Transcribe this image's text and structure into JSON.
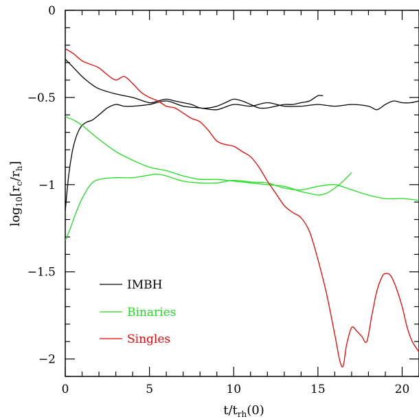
{
  "chart_data": {
    "type": "line",
    "title": "",
    "xlabel": "t/t_rh(0)",
    "ylabel": "log10[r_c/r_h]",
    "xlim": [
      0,
      21
    ],
    "ylim": [
      -2.1,
      0
    ],
    "x_ticks": [
      0,
      5,
      10,
      15,
      20
    ],
    "y_ticks": [
      0,
      -0.5,
      -1,
      -1.5,
      -2
    ],
    "x_tick_labels": [
      "0",
      "5",
      "10",
      "15",
      "20"
    ],
    "y_tick_labels": [
      "0",
      "-0.5",
      "-1",
      "-1.5",
      "-2"
    ],
    "grid": false,
    "legend_position": "bottom-left",
    "legend": [
      {
        "name": "IMBH",
        "color": "#000000"
      },
      {
        "name": "Binaries",
        "color": "#22dd22"
      },
      {
        "name": "Singles",
        "color": "#ee0000"
      }
    ],
    "series": [
      {
        "name": "IMBH",
        "color": "#000000",
        "x": [
          0,
          0.5,
          1,
          1.5,
          2,
          3,
          4,
          5,
          5.5,
          6,
          6.5,
          7,
          7.5,
          8,
          8.5,
          9,
          9.5,
          10,
          10.5,
          11,
          11.5,
          12,
          12.5,
          13,
          13.5,
          14,
          14.5,
          15,
          15.3
        ],
        "y": [
          -0.28,
          -0.33,
          -0.38,
          -0.42,
          -0.45,
          -0.48,
          -0.5,
          -0.53,
          -0.52,
          -0.51,
          -0.52,
          -0.53,
          -0.54,
          -0.56,
          -0.56,
          -0.55,
          -0.53,
          -0.51,
          -0.52,
          -0.54,
          -0.56,
          -0.56,
          -0.55,
          -0.54,
          -0.54,
          -0.53,
          -0.52,
          -0.49,
          -0.49
        ]
      },
      {
        "name": "IMBH",
        "color": "#000000",
        "x": [
          0,
          0.2,
          0.4,
          0.6,
          0.8,
          1,
          1.3,
          1.6,
          2,
          2.5,
          3,
          3.5,
          4,
          5,
          6,
          7,
          8,
          9,
          10,
          11,
          12,
          13,
          14,
          15,
          16,
          17,
          18,
          18.5,
          19,
          19.5,
          20,
          20.5,
          21
        ],
        "y": [
          -1.15,
          -0.95,
          -0.82,
          -0.74,
          -0.69,
          -0.66,
          -0.64,
          -0.63,
          -0.6,
          -0.56,
          -0.54,
          -0.55,
          -0.55,
          -0.54,
          -0.52,
          -0.55,
          -0.56,
          -0.57,
          -0.54,
          -0.55,
          -0.53,
          -0.55,
          -0.55,
          -0.54,
          -0.55,
          -0.54,
          -0.55,
          -0.57,
          -0.54,
          -0.52,
          -0.53,
          -0.53,
          -0.52
        ]
      },
      {
        "name": "Binaries",
        "color": "#22dd22",
        "x": [
          0,
          0.5,
          1,
          1.5,
          2,
          3,
          4,
          5,
          6,
          7,
          8,
          9,
          10,
          11,
          12,
          13,
          14,
          14.5,
          15,
          15.5,
          16,
          16.5,
          17
        ],
        "y": [
          -0.61,
          -0.63,
          -0.66,
          -0.7,
          -0.74,
          -0.81,
          -0.86,
          -0.9,
          -0.92,
          -0.95,
          -0.97,
          -0.97,
          -0.98,
          -0.99,
          -1.0,
          -1.01,
          -1.04,
          -1.05,
          -1.06,
          -1.05,
          -1.02,
          -0.98,
          -0.93
        ]
      },
      {
        "name": "Binaries",
        "color": "#22dd22",
        "x": [
          0,
          0.3,
          0.6,
          1,
          1.5,
          2,
          3,
          4,
          5,
          5.5,
          6,
          7,
          8,
          9,
          10,
          11,
          12,
          13,
          14,
          15,
          16,
          17,
          18,
          19,
          20,
          21
        ],
        "y": [
          -1.32,
          -1.25,
          -1.17,
          -1.08,
          -1.0,
          -0.97,
          -0.96,
          -0.96,
          -0.945,
          -0.94,
          -0.95,
          -0.98,
          -0.99,
          -0.99,
          -0.975,
          -0.985,
          -0.99,
          -1.02,
          -1.03,
          -1.01,
          -1.0,
          -1.03,
          -1.06,
          -1.08,
          -1.08,
          -1.09
        ]
      },
      {
        "name": "Singles",
        "color": "#ee0000",
        "x": [
          0,
          0.5,
          1,
          1.5,
          2,
          2.5,
          3,
          3.5,
          4,
          4.5,
          5,
          5.5,
          6,
          6.5,
          7,
          7.5,
          8,
          8.5,
          9,
          9.5,
          10,
          10.5,
          11,
          11.5,
          12,
          12.5,
          13,
          13.5,
          14,
          14.5,
          15,
          15.5,
          16,
          16.3,
          16.5,
          16.7,
          17,
          17.3,
          17.6,
          17.9,
          18.2,
          18.5,
          18.8,
          19,
          19.3,
          19.6,
          20,
          20.3,
          20.6,
          21
        ],
        "y": [
          -0.22,
          -0.25,
          -0.29,
          -0.31,
          -0.33,
          -0.37,
          -0.4,
          -0.38,
          -0.42,
          -0.47,
          -0.5,
          -0.52,
          -0.55,
          -0.56,
          -0.59,
          -0.62,
          -0.64,
          -0.69,
          -0.75,
          -0.77,
          -0.78,
          -0.81,
          -0.84,
          -0.9,
          -0.98,
          -1.05,
          -1.12,
          -1.16,
          -1.19,
          -1.27,
          -1.43,
          -1.62,
          -1.86,
          -2.01,
          -2.04,
          -1.92,
          -1.82,
          -1.84,
          -1.87,
          -1.9,
          -1.75,
          -1.61,
          -1.53,
          -1.51,
          -1.52,
          -1.58,
          -1.7,
          -1.82,
          -1.9,
          -1.96
        ]
      }
    ]
  }
}
